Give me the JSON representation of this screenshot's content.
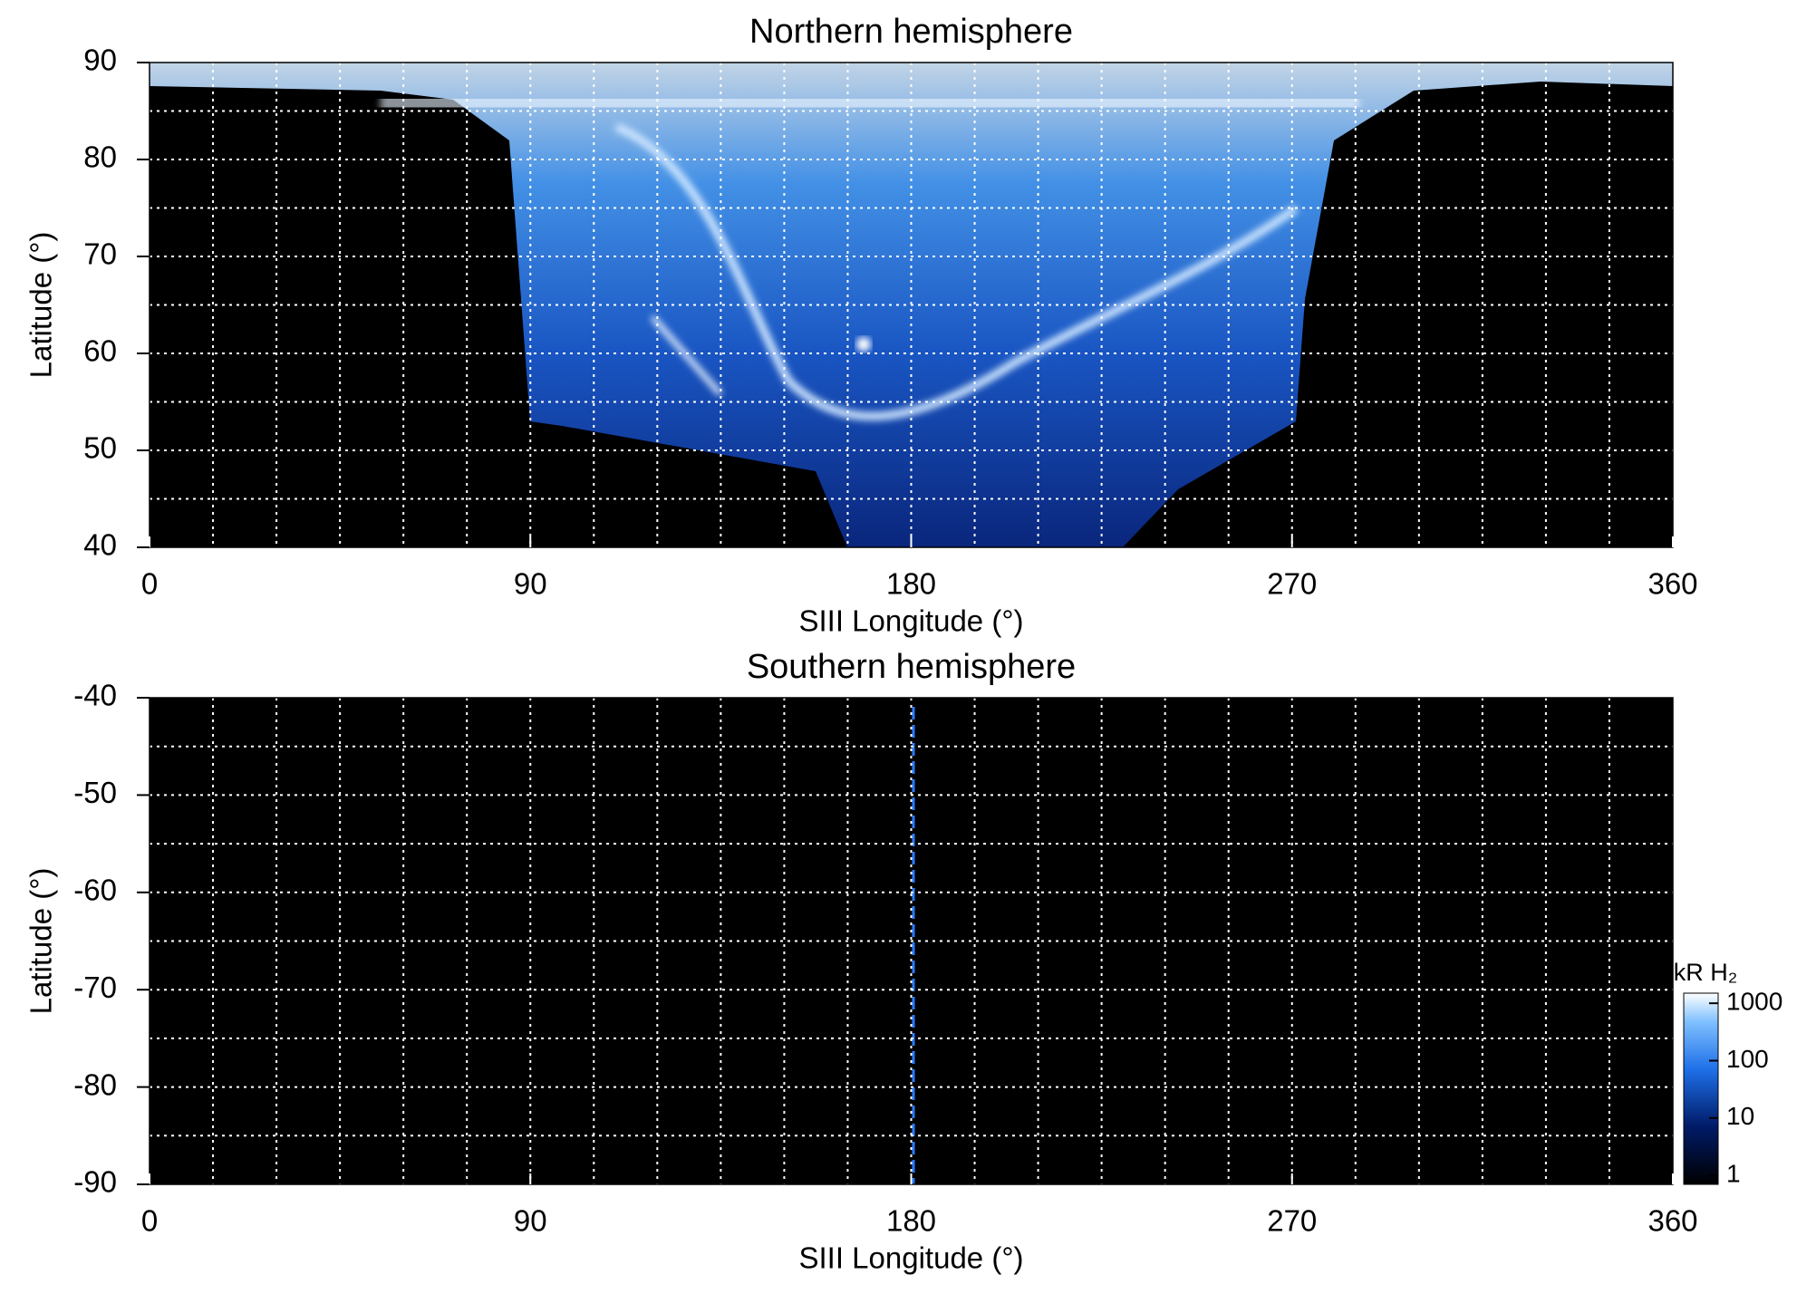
{
  "chart_data": [
    {
      "type": "heatmap",
      "title": "Northern hemisphere",
      "x_label": "SIII Longitude (°)",
      "y_label": "Latitude (°)",
      "xlim": [
        0,
        360
      ],
      "xticks": [
        0,
        90,
        180,
        270,
        360
      ],
      "ylim": [
        40,
        90
      ],
      "yticks": [
        40,
        50,
        60,
        70,
        80,
        90
      ],
      "x_grid": [
        15,
        30,
        45,
        60,
        75,
        90,
        105,
        120,
        135,
        150,
        165,
        180,
        195,
        210,
        225,
        240,
        255,
        270,
        285,
        300,
        315,
        330,
        345
      ],
      "y_grid": [
        45,
        50,
        55,
        60,
        65,
        70,
        75,
        80,
        85
      ],
      "grid": true
    },
    {
      "type": "heatmap",
      "title": "Southern hemisphere",
      "x_label": "SIII Longitude (°)",
      "y_label": "Latitude (°)",
      "xlim": [
        0,
        360
      ],
      "xticks": [
        0,
        90,
        180,
        270,
        360
      ],
      "ylim": [
        -90,
        -40
      ],
      "yticks": [
        -90,
        -80,
        -70,
        -60,
        -50,
        -40
      ],
      "x_grid": [
        15,
        30,
        45,
        60,
        75,
        90,
        105,
        120,
        135,
        150,
        165,
        180,
        195,
        210,
        225,
        240,
        255,
        270,
        285,
        300,
        315,
        330,
        345
      ],
      "y_grid": [
        -85,
        -80,
        -75,
        -70,
        -65,
        -60,
        -55,
        -50,
        -45
      ],
      "grid": true
    }
  ],
  "colorbar": {
    "label": "kR H₂",
    "scale": "log",
    "lim": [
      0.7,
      1500
    ],
    "ticks": [
      1,
      10,
      100,
      1000
    ]
  }
}
